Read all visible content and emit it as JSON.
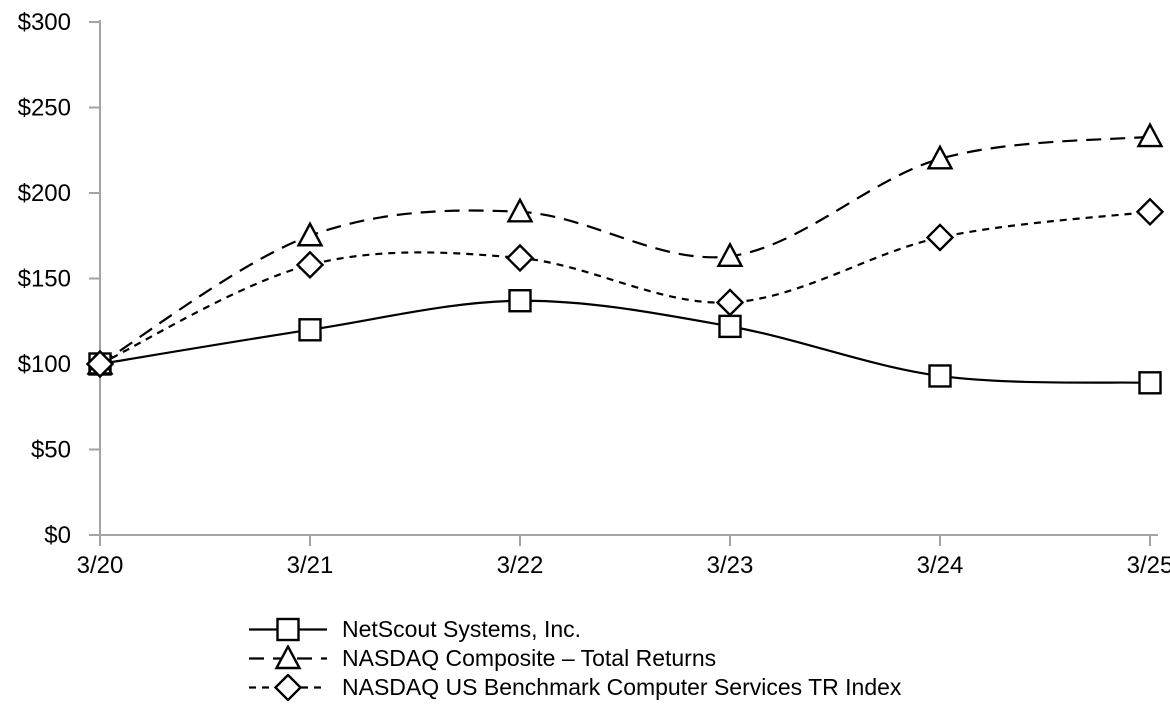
{
  "chart_data": {
    "type": "line",
    "title": "",
    "categories": [
      "3/20",
      "3/21",
      "3/22",
      "3/23",
      "3/24",
      "3/25"
    ],
    "series": [
      {
        "name": "NetScout Systems, Inc.",
        "marker": "square",
        "line_style": "solid",
        "values": [
          100,
          120,
          137,
          122,
          93,
          89
        ]
      },
      {
        "name": "NASDAQ Composite – Total Returns",
        "marker": "triangle",
        "line_style": "long-dash",
        "values": [
          100,
          175,
          189,
          163,
          220,
          233
        ]
      },
      {
        "name": "NASDAQ US Benchmark Computer Services TR Index",
        "marker": "diamond",
        "line_style": "short-dash",
        "values": [
          100,
          158,
          162,
          136,
          174,
          189
        ]
      }
    ],
    "y_axis": {
      "prefix": "$",
      "ticks": [
        0,
        50,
        100,
        150,
        200,
        250,
        300
      ],
      "tick_labels": [
        "$0",
        "$50",
        "$100",
        "$150",
        "$200",
        "$250",
        "$300"
      ],
      "range": [
        0,
        300
      ]
    },
    "x_axis": {
      "tick_labels": [
        "3/20",
        "3/21",
        "3/22",
        "3/23",
        "3/24",
        "3/25"
      ]
    },
    "legend_position": "bottom-left",
    "grid": false,
    "smoothed_lines": true,
    "colors": {
      "series_line": "#000000",
      "marker_fill": "#ffffff",
      "axis": "#a3a3a3",
      "background": "#ffffff",
      "text": "#000000"
    }
  }
}
